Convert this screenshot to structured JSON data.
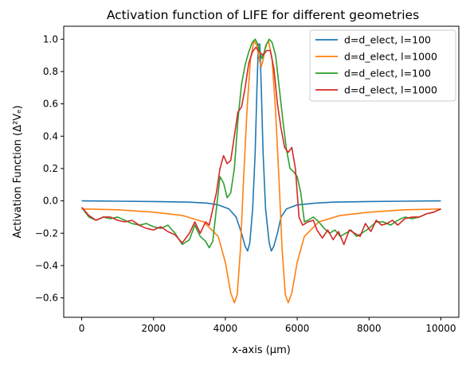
{
  "chart_data": {
    "type": "line",
    "title": "Activation function of LIFE for different geometries",
    "xlabel": "x-axis (μm)",
    "ylabel": "Activation Function (Δ²Vₑ)",
    "xlim": [
      -500,
      10500
    ],
    "ylim": [
      -0.72,
      1.08
    ],
    "xticks": [
      0,
      2000,
      4000,
      6000,
      8000,
      10000
    ],
    "yticks": [
      -0.6,
      -0.4,
      -0.2,
      0.0,
      0.2,
      0.4,
      0.6,
      0.8,
      1.0
    ],
    "xtick_labels": [
      "0",
      "2000",
      "4000",
      "6000",
      "8000",
      "10000"
    ],
    "ytick_labels": [
      "−0.6",
      "−0.4",
      "−0.2",
      "0.0",
      "0.2",
      "0.4",
      "0.6",
      "0.8",
      "1.0"
    ],
    "grid": false,
    "legend_position": "top-right",
    "series": [
      {
        "name": "d=d_elect, l=100",
        "color": "#1f77b4",
        "points": [
          [
            0,
            0.0
          ],
          [
            1000,
            -0.002
          ],
          [
            2000,
            -0.004
          ],
          [
            3000,
            -0.008
          ],
          [
            3500,
            -0.014
          ],
          [
            3800,
            -0.025
          ],
          [
            4100,
            -0.05
          ],
          [
            4300,
            -0.1
          ],
          [
            4450,
            -0.2
          ],
          [
            4550,
            -0.28
          ],
          [
            4620,
            -0.31
          ],
          [
            4680,
            -0.26
          ],
          [
            4760,
            -0.05
          ],
          [
            4830,
            0.3
          ],
          [
            4880,
            0.7
          ],
          [
            4920,
            0.97
          ],
          [
            4960,
            0.97
          ],
          [
            5000,
            0.7
          ],
          [
            5050,
            0.3
          ],
          [
            5120,
            -0.05
          ],
          [
            5220,
            -0.26
          ],
          [
            5280,
            -0.31
          ],
          [
            5350,
            -0.28
          ],
          [
            5450,
            -0.2
          ],
          [
            5550,
            -0.1
          ],
          [
            5700,
            -0.05
          ],
          [
            6000,
            -0.025
          ],
          [
            6500,
            -0.014
          ],
          [
            7000,
            -0.008
          ],
          [
            8000,
            -0.004
          ],
          [
            9000,
            -0.002
          ],
          [
            10000,
            0.0
          ]
        ]
      },
      {
        "name": "d=d_elect, l=1000",
        "color": "#ff7f0e",
        "points": [
          [
            0,
            -0.05
          ],
          [
            1000,
            -0.055
          ],
          [
            2000,
            -0.07
          ],
          [
            2800,
            -0.09
          ],
          [
            3400,
            -0.13
          ],
          [
            3800,
            -0.22
          ],
          [
            4000,
            -0.38
          ],
          [
            4150,
            -0.57
          ],
          [
            4250,
            -0.63
          ],
          [
            4330,
            -0.58
          ],
          [
            4420,
            -0.3
          ],
          [
            4500,
            0.1
          ],
          [
            4600,
            0.55
          ],
          [
            4700,
            0.88
          ],
          [
            4800,
            0.99
          ],
          [
            4880,
            0.96
          ],
          [
            4960,
            0.86
          ],
          [
            5000,
            0.83
          ],
          [
            5050,
            0.87
          ],
          [
            5120,
            0.96
          ],
          [
            5200,
            0.99
          ],
          [
            5300,
            0.88
          ],
          [
            5400,
            0.55
          ],
          [
            5500,
            0.1
          ],
          [
            5580,
            -0.3
          ],
          [
            5670,
            -0.58
          ],
          [
            5750,
            -0.63
          ],
          [
            5850,
            -0.57
          ],
          [
            6000,
            -0.38
          ],
          [
            6200,
            -0.22
          ],
          [
            6600,
            -0.13
          ],
          [
            7200,
            -0.09
          ],
          [
            8000,
            -0.07
          ],
          [
            9000,
            -0.055
          ],
          [
            10000,
            -0.05
          ]
        ]
      },
      {
        "name": "d=d_elect, l=100",
        "color": "#2ca02c",
        "points": [
          [
            0,
            -0.04
          ],
          [
            200,
            -0.1
          ],
          [
            400,
            -0.12
          ],
          [
            600,
            -0.1
          ],
          [
            800,
            -0.11
          ],
          [
            1000,
            -0.1
          ],
          [
            1200,
            -0.12
          ],
          [
            1400,
            -0.14
          ],
          [
            1600,
            -0.15
          ],
          [
            1800,
            -0.14
          ],
          [
            2000,
            -0.16
          ],
          [
            2200,
            -0.17
          ],
          [
            2400,
            -0.15
          ],
          [
            2600,
            -0.2
          ],
          [
            2800,
            -0.27
          ],
          [
            3000,
            -0.24
          ],
          [
            3150,
            -0.15
          ],
          [
            3300,
            -0.22
          ],
          [
            3450,
            -0.25
          ],
          [
            3550,
            -0.29
          ],
          [
            3650,
            -0.25
          ],
          [
            3750,
            -0.05
          ],
          [
            3850,
            0.15
          ],
          [
            3950,
            0.11
          ],
          [
            4050,
            0.02
          ],
          [
            4150,
            0.05
          ],
          [
            4250,
            0.2
          ],
          [
            4350,
            0.5
          ],
          [
            4450,
            0.72
          ],
          [
            4550,
            0.84
          ],
          [
            4650,
            0.92
          ],
          [
            4750,
            0.98
          ],
          [
            4830,
            1.0
          ],
          [
            4900,
            0.97
          ],
          [
            4960,
            0.92
          ],
          [
            5020,
            0.88
          ],
          [
            5080,
            0.92
          ],
          [
            5150,
            0.97
          ],
          [
            5220,
            1.0
          ],
          [
            5300,
            0.98
          ],
          [
            5400,
            0.9
          ],
          [
            5500,
            0.7
          ],
          [
            5600,
            0.5
          ],
          [
            5700,
            0.32
          ],
          [
            5800,
            0.2
          ],
          [
            5900,
            0.18
          ],
          [
            6000,
            0.15
          ],
          [
            6100,
            0.05
          ],
          [
            6200,
            -0.13
          ],
          [
            6300,
            -0.12
          ],
          [
            6450,
            -0.1
          ],
          [
            6600,
            -0.13
          ],
          [
            6750,
            -0.17
          ],
          [
            6900,
            -0.2
          ],
          [
            7050,
            -0.18
          ],
          [
            7200,
            -0.22
          ],
          [
            7350,
            -0.2
          ],
          [
            7500,
            -0.18
          ],
          [
            7650,
            -0.22
          ],
          [
            7800,
            -0.2
          ],
          [
            8000,
            -0.17
          ],
          [
            8200,
            -0.13
          ],
          [
            8400,
            -0.13
          ],
          [
            8600,
            -0.15
          ],
          [
            8800,
            -0.12
          ],
          [
            9000,
            -0.1
          ],
          [
            9200,
            -0.11
          ],
          [
            9400,
            -0.1
          ],
          [
            9600,
            -0.08
          ],
          [
            9800,
            -0.07
          ],
          [
            10000,
            -0.05
          ]
        ]
      },
      {
        "name": "d=d_elect, l=1000",
        "color": "#d62728",
        "points": [
          [
            0,
            -0.04
          ],
          [
            200,
            -0.09
          ],
          [
            400,
            -0.12
          ],
          [
            600,
            -0.1
          ],
          [
            800,
            -0.1
          ],
          [
            1000,
            -0.12
          ],
          [
            1200,
            -0.13
          ],
          [
            1400,
            -0.12
          ],
          [
            1600,
            -0.15
          ],
          [
            1800,
            -0.17
          ],
          [
            2000,
            -0.18
          ],
          [
            2200,
            -0.16
          ],
          [
            2400,
            -0.19
          ],
          [
            2600,
            -0.21
          ],
          [
            2800,
            -0.26
          ],
          [
            3000,
            -0.2
          ],
          [
            3150,
            -0.13
          ],
          [
            3300,
            -0.2
          ],
          [
            3450,
            -0.13
          ],
          [
            3550,
            -0.15
          ],
          [
            3650,
            -0.05
          ],
          [
            3750,
            0.05
          ],
          [
            3850,
            0.2
          ],
          [
            3950,
            0.28
          ],
          [
            4050,
            0.23
          ],
          [
            4150,
            0.25
          ],
          [
            4250,
            0.4
          ],
          [
            4350,
            0.55
          ],
          [
            4450,
            0.58
          ],
          [
            4550,
            0.7
          ],
          [
            4650,
            0.85
          ],
          [
            4750,
            0.92
          ],
          [
            4850,
            0.95
          ],
          [
            4950,
            0.92
          ],
          [
            5050,
            0.9
          ],
          [
            5150,
            0.93
          ],
          [
            5250,
            0.93
          ],
          [
            5350,
            0.82
          ],
          [
            5450,
            0.6
          ],
          [
            5550,
            0.45
          ],
          [
            5650,
            0.33
          ],
          [
            5750,
            0.3
          ],
          [
            5850,
            0.33
          ],
          [
            5950,
            0.2
          ],
          [
            6050,
            -0.1
          ],
          [
            6150,
            -0.15
          ],
          [
            6300,
            -0.13
          ],
          [
            6450,
            -0.12
          ],
          [
            6550,
            -0.18
          ],
          [
            6700,
            -0.23
          ],
          [
            6850,
            -0.18
          ],
          [
            7000,
            -0.24
          ],
          [
            7150,
            -0.19
          ],
          [
            7300,
            -0.27
          ],
          [
            7450,
            -0.18
          ],
          [
            7600,
            -0.2
          ],
          [
            7750,
            -0.22
          ],
          [
            7900,
            -0.14
          ],
          [
            8050,
            -0.19
          ],
          [
            8200,
            -0.12
          ],
          [
            8350,
            -0.15
          ],
          [
            8500,
            -0.14
          ],
          [
            8650,
            -0.12
          ],
          [
            8800,
            -0.15
          ],
          [
            9000,
            -0.11
          ],
          [
            9200,
            -0.1
          ],
          [
            9400,
            -0.1
          ],
          [
            9600,
            -0.08
          ],
          [
            9800,
            -0.07
          ],
          [
            10000,
            -0.05
          ]
        ]
      }
    ]
  }
}
